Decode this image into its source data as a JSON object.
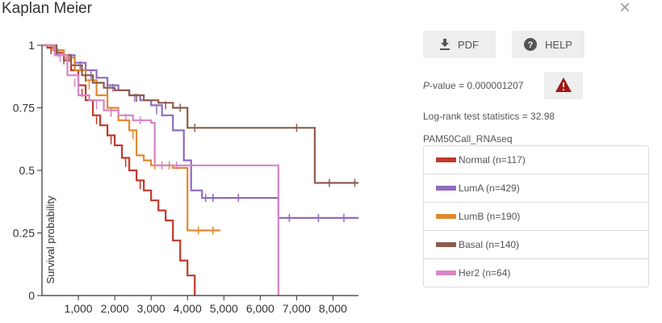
{
  "header": {
    "title": "Kaplan Meier",
    "close_glyph": "×"
  },
  "toolbar": {
    "pdf_label": "PDF",
    "help_label": "HELP"
  },
  "stats": {
    "p_prefix": "P",
    "p_suffix": "-value = 0.000001207",
    "logrank": "Log-rank test statistics = 32.98"
  },
  "legend": {
    "title": "PAM50Call_RNAseq",
    "items": [
      {
        "label": "Normal (n=117)",
        "color": "#c0392b"
      },
      {
        "label": "LumA (n=429)",
        "color": "#8e6bbf"
      },
      {
        "label": "LumB (n=190)",
        "color": "#e08a2e"
      },
      {
        "label": "Basal (n=140)",
        "color": "#8c5c4e"
      },
      {
        "label": "Her2 (n=64)",
        "color": "#d884c6"
      }
    ]
  },
  "colors": {
    "warning": "#a31515",
    "axis": "#333333"
  },
  "chart_data": {
    "type": "line",
    "subtype": "kaplan-meier-step",
    "title": "Kaplan Meier",
    "xlabel": "",
    "ylabel": "Survival probability",
    "xlim": [
      0,
      8700
    ],
    "ylim": [
      0,
      1
    ],
    "xticks": [
      1000,
      2000,
      3000,
      4000,
      5000,
      6000,
      7000,
      8000
    ],
    "xtick_labels": [
      "1,000",
      "2,000",
      "3,000",
      "4,000",
      "5,000",
      "6,000",
      "7,000",
      "8,000"
    ],
    "yticks": [
      0,
      0.25,
      0.5,
      0.75,
      1
    ],
    "ytick_labels": [
      "0",
      "0.25",
      "0.5",
      "0.75",
      "1"
    ],
    "grid": false,
    "series": [
      {
        "name": "Normal (n=117)",
        "color": "#c0392b",
        "x": [
          0,
          150,
          400,
          600,
          800,
          1000,
          1200,
          1400,
          1600,
          1800,
          2000,
          2200,
          2400,
          2600,
          2800,
          3000,
          3200,
          3400,
          3600,
          3800,
          4000,
          4200
        ],
        "y": [
          1,
          0.99,
          0.97,
          0.94,
          0.9,
          0.84,
          0.78,
          0.72,
          0.68,
          0.64,
          0.6,
          0.55,
          0.5,
          0.46,
          0.42,
          0.38,
          0.34,
          0.3,
          0.22,
          0.14,
          0.08,
          0
        ],
        "censors": [
          [
            250,
            0.98
          ],
          [
            700,
            0.92
          ],
          [
            1100,
            0.81
          ],
          [
            1500,
            0.7
          ],
          [
            1900,
            0.62
          ],
          [
            2300,
            0.53
          ],
          [
            2700,
            0.44
          ]
        ]
      },
      {
        "name": "LumA (n=429)",
        "color": "#8e6bbf",
        "x": [
          0,
          300,
          600,
          900,
          1200,
          1500,
          1800,
          2100,
          2400,
          2700,
          3000,
          3300,
          3600,
          3900,
          4100,
          4400,
          5000,
          5600,
          6200,
          6500,
          8700
        ],
        "y": [
          1,
          0.98,
          0.96,
          0.93,
          0.9,
          0.87,
          0.84,
          0.82,
          0.8,
          0.78,
          0.76,
          0.72,
          0.66,
          0.54,
          0.42,
          0.39,
          0.39,
          0.39,
          0.39,
          0.31,
          0.31
        ],
        "censors": [
          [
            450,
            0.97
          ],
          [
            750,
            0.95
          ],
          [
            1050,
            0.92
          ],
          [
            1350,
            0.88
          ],
          [
            1950,
            0.83
          ],
          [
            2550,
            0.79
          ],
          [
            3150,
            0.74
          ],
          [
            4500,
            0.39
          ],
          [
            4700,
            0.39
          ],
          [
            5400,
            0.39
          ],
          [
            6800,
            0.31
          ],
          [
            7600,
            0.31
          ],
          [
            8300,
            0.31
          ]
        ]
      },
      {
        "name": "LumB (n=190)",
        "color": "#e08a2e",
        "x": [
          0,
          300,
          600,
          900,
          1200,
          1500,
          1800,
          2100,
          2400,
          2600,
          2800,
          3000,
          3300,
          3600,
          3900,
          4000,
          4900
        ],
        "y": [
          1,
          0.98,
          0.95,
          0.9,
          0.86,
          0.8,
          0.75,
          0.7,
          0.66,
          0.56,
          0.54,
          0.52,
          0.52,
          0.51,
          0.51,
          0.26,
          0.26
        ],
        "censors": [
          [
            700,
            0.94
          ],
          [
            1300,
            0.84
          ],
          [
            1900,
            0.73
          ],
          [
            2500,
            0.64
          ],
          [
            3100,
            0.52
          ],
          [
            3500,
            0.52
          ],
          [
            4300,
            0.26
          ],
          [
            4700,
            0.26
          ]
        ]
      },
      {
        "name": "Basal (n=140)",
        "color": "#8c5c4e",
        "x": [
          0,
          400,
          800,
          1100,
          1400,
          1700,
          2000,
          2400,
          2800,
          3200,
          3600,
          4000,
          5000,
          6000,
          7400,
          7500,
          8700
        ],
        "y": [
          1,
          0.96,
          0.92,
          0.88,
          0.85,
          0.83,
          0.82,
          0.8,
          0.78,
          0.77,
          0.75,
          0.67,
          0.67,
          0.67,
          0.67,
          0.45,
          0.45
        ],
        "censors": [
          [
            600,
            0.94
          ],
          [
            1200,
            0.87
          ],
          [
            1800,
            0.82
          ],
          [
            2600,
            0.79
          ],
          [
            3400,
            0.76
          ],
          [
            3800,
            0.75
          ],
          [
            4200,
            0.67
          ],
          [
            7000,
            0.67
          ],
          [
            7900,
            0.45
          ],
          [
            8600,
            0.45
          ]
        ]
      },
      {
        "name": "Her2 (n=64)",
        "color": "#d884c6",
        "x": [
          0,
          350,
          700,
          1000,
          1300,
          1700,
          2100,
          2500,
          3000,
          3100,
          3500,
          4000,
          5000,
          6000,
          6400,
          6500
        ],
        "y": [
          1,
          0.96,
          0.88,
          0.8,
          0.78,
          0.74,
          0.72,
          0.7,
          0.69,
          0.52,
          0.52,
          0.52,
          0.52,
          0.52,
          0.52,
          0
        ],
        "censors": [
          [
            500,
            0.95
          ],
          [
            900,
            0.85
          ],
          [
            1500,
            0.76
          ],
          [
            1900,
            0.73
          ],
          [
            2300,
            0.71
          ],
          [
            2700,
            0.7
          ],
          [
            3300,
            0.52
          ],
          [
            3700,
            0.52
          ]
        ]
      }
    ]
  }
}
